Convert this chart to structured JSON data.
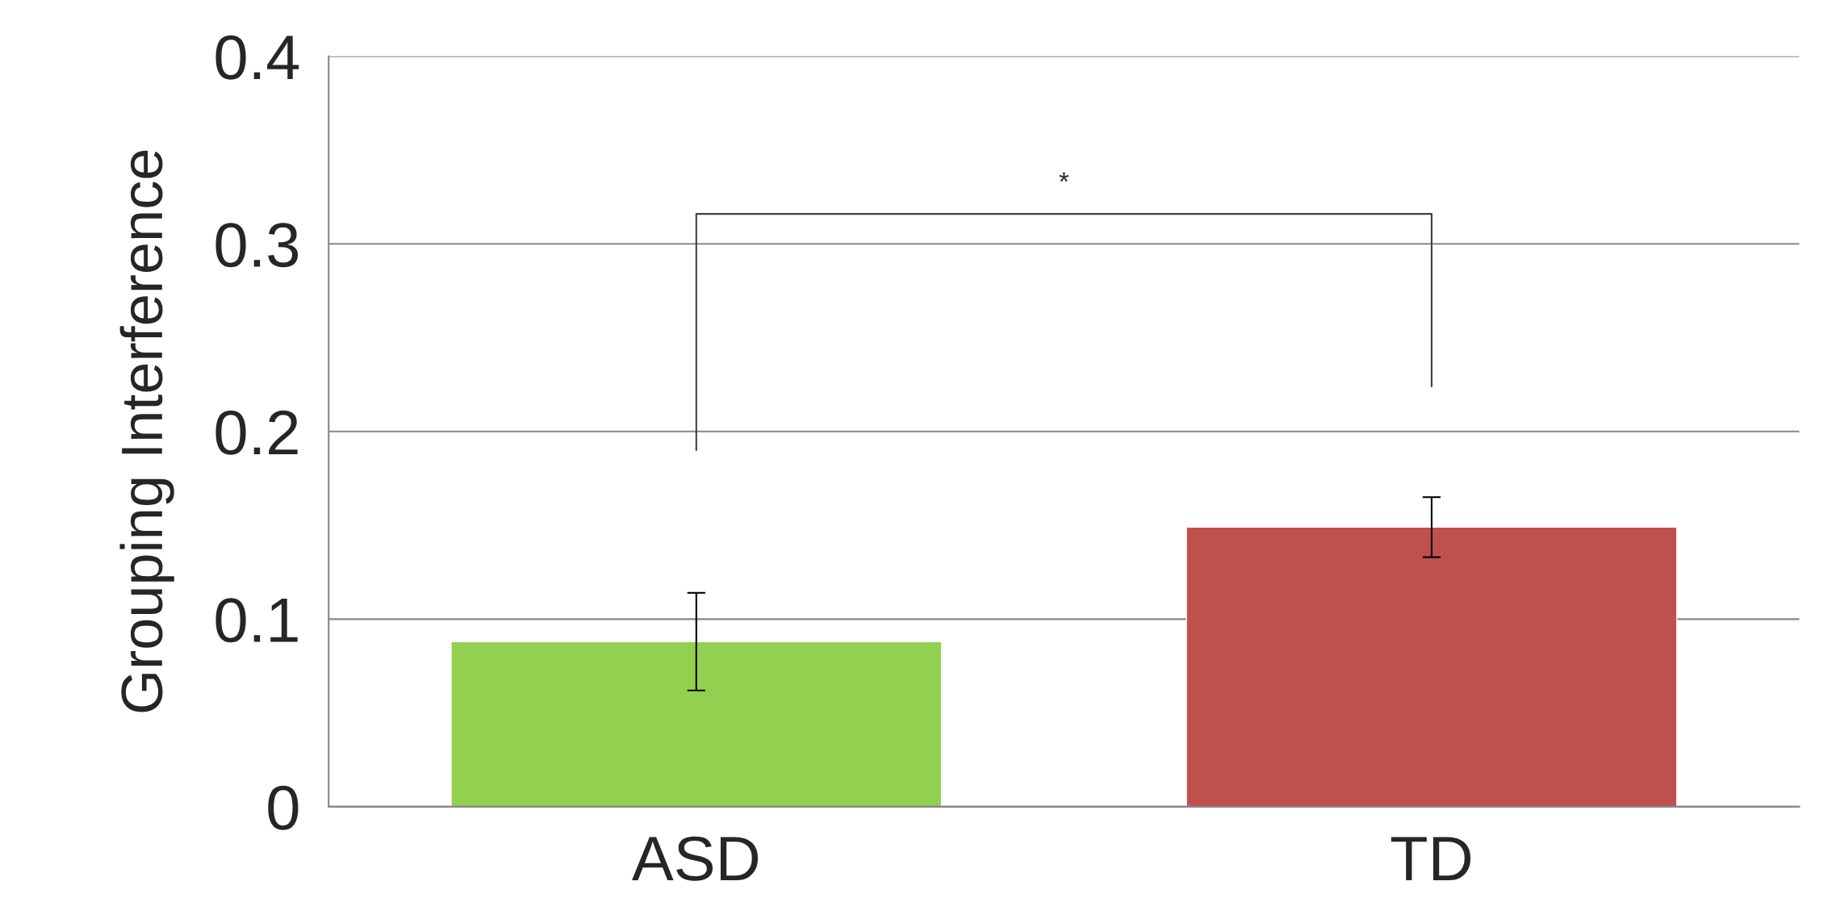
{
  "chart_data": {
    "type": "bar",
    "ylabel": "Grouping Interference",
    "categories": [
      "ASD",
      "TD"
    ],
    "values": [
      0.088,
      0.149
    ],
    "errors": [
      0.026,
      0.016
    ],
    "colors": [
      "#92d050",
      "#c0504d"
    ],
    "ylim": [
      0,
      0.4
    ],
    "yticks": [
      {
        "value": 0,
        "label": "0"
      },
      0.1,
      0.2,
      0.3,
      0.4
    ],
    "grid": "y",
    "legend": false,
    "annotations": [
      "*"
    ]
  }
}
